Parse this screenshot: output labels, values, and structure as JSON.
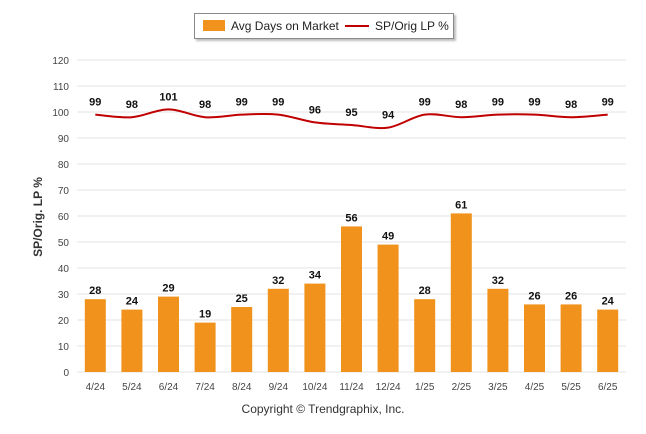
{
  "legend": {
    "bar_label": "Avg Days on Market",
    "line_label": "SP/Orig LP %"
  },
  "copyright": "Copyright © Trendgraphix, Inc.",
  "colors": {
    "bar": "#f0921c",
    "line": "#c00000",
    "grid": "#e3e3e3"
  },
  "chart_data": {
    "type": "bar",
    "ylabel": "SP/Orig. LP %",
    "ylim": [
      0,
      120
    ],
    "yticks": [
      0,
      10,
      20,
      30,
      40,
      50,
      60,
      70,
      80,
      90,
      100,
      110,
      120
    ],
    "grid": true,
    "legend_position": "top-center",
    "categories": [
      "4/24",
      "5/24",
      "6/24",
      "7/24",
      "8/24",
      "9/24",
      "10/24",
      "11/24",
      "12/24",
      "1/25",
      "2/25",
      "3/25",
      "4/25",
      "5/25",
      "6/25"
    ],
    "series": [
      {
        "name": "Avg Days on Market",
        "type": "bar",
        "values": [
          28,
          24,
          29,
          19,
          25,
          32,
          34,
          56,
          49,
          28,
          61,
          32,
          26,
          26,
          24
        ]
      },
      {
        "name": "SP/Orig LP %",
        "type": "line",
        "values": [
          99,
          98,
          101,
          98,
          99,
          99,
          96,
          95,
          94,
          99,
          98,
          99,
          99,
          98,
          99
        ]
      }
    ]
  }
}
